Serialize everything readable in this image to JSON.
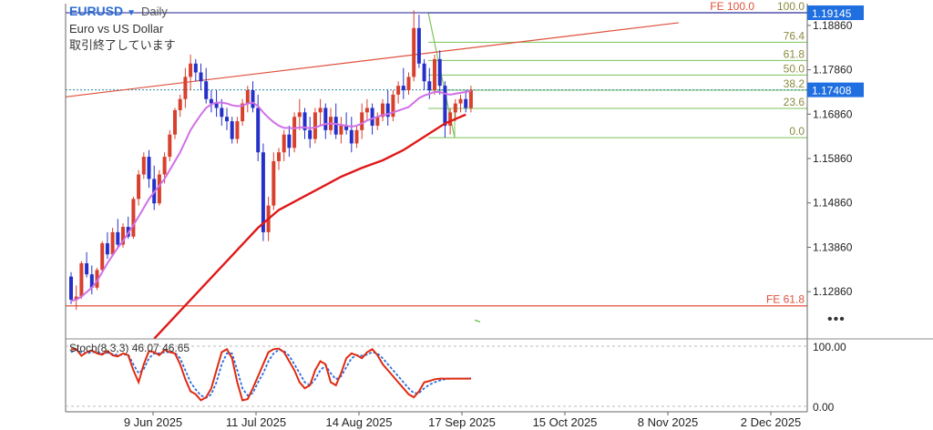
{
  "header": {
    "symbol": "EURUSD",
    "timeframe": "Daily",
    "description": "Euro vs US Dollar",
    "status": "取引終了しています"
  },
  "more_icon": "•••",
  "colors": {
    "up_candle": "#d8402e",
    "down_candle": "#2530c8",
    "ma_short": "#d070e6",
    "ma_long": "#e01818",
    "trend_line": "#e0503c",
    "fib": "#7cc25a",
    "fe": "#e0503c",
    "stoch_k": "#e02a10",
    "stoch_d": "#2a6ee0",
    "price_tag": "#1f6fe0"
  },
  "chart_data": {
    "type": "candlestick",
    "symbol": "EURUSD",
    "timeframe": "Daily",
    "y_ticks": [
      1.1886,
      1.1786,
      1.1686,
      1.1586,
      1.1486,
      1.1386,
      1.1286
    ],
    "y_tick_labels": [
      "1.18860",
      "1.17860",
      "1.16860",
      "1.15860",
      "1.14860",
      "1.13860",
      "1.12860"
    ],
    "ylim": [
      1.1196,
      1.1935
    ],
    "x_labels": [
      "9 Jun 2025",
      "11 Jul 2025",
      "14 Aug 2025",
      "17 Sep 2025",
      "15 Oct 2025",
      "8 Nov 2025",
      "2 Dec 2025"
    ],
    "current_price": "1.17408",
    "fe_price": "1.19145",
    "fib_retracement": [
      {
        "label": "100.0",
        "price": 1.19145
      },
      {
        "label": "76.4",
        "price": 1.1848
      },
      {
        "label": "61.8",
        "price": 1.1807
      },
      {
        "label": "50.0",
        "price": 1.1774
      },
      {
        "label": "38.2",
        "price": 1.174
      },
      {
        "label": "23.6",
        "price": 1.1699
      },
      {
        "label": "0.0",
        "price": 1.1633
      }
    ],
    "fib_extension": [
      {
        "label": "FE 100.0",
        "price": 1.19145
      },
      {
        "label": "FE 61.8",
        "price": 1.1254
      }
    ],
    "candles": [
      [
        1.132,
        1.133,
        1.1258,
        1.1268
      ],
      [
        1.1268,
        1.13,
        1.1245,
        1.1275
      ],
      [
        1.1275,
        1.1355,
        1.127,
        1.135
      ],
      [
        1.135,
        1.1375,
        1.1318,
        1.1325
      ],
      [
        1.1325,
        1.1345,
        1.128,
        1.1295
      ],
      [
        1.1295,
        1.134,
        1.129,
        1.1335
      ],
      [
        1.1335,
        1.14,
        1.133,
        1.1395
      ],
      [
        1.1395,
        1.142,
        1.136,
        1.137
      ],
      [
        1.137,
        1.143,
        1.1365,
        1.142
      ],
      [
        1.142,
        1.145,
        1.1385,
        1.1392
      ],
      [
        1.1392,
        1.144,
        1.1385,
        1.1432
      ],
      [
        1.1432,
        1.1455,
        1.1405,
        1.141
      ],
      [
        1.141,
        1.15,
        1.1405,
        1.1495
      ],
      [
        1.1495,
        1.156,
        1.148,
        1.155
      ],
      [
        1.155,
        1.16,
        1.154,
        1.159
      ],
      [
        1.159,
        1.1605,
        1.152,
        1.154
      ],
      [
        1.154,
        1.157,
        1.147,
        1.1485
      ],
      [
        1.1485,
        1.156,
        1.148,
        1.155
      ],
      [
        1.155,
        1.16,
        1.153,
        1.159
      ],
      [
        1.159,
        1.165,
        1.158,
        1.164
      ],
      [
        1.164,
        1.17,
        1.163,
        1.1695
      ],
      [
        1.1695,
        1.173,
        1.168,
        1.172
      ],
      [
        1.172,
        1.179,
        1.17,
        1.177
      ],
      [
        1.177,
        1.182,
        1.174,
        1.18
      ],
      [
        1.18,
        1.181,
        1.176,
        1.178
      ],
      [
        1.178,
        1.18,
        1.174,
        1.176
      ],
      [
        1.176,
        1.179,
        1.171,
        1.172
      ],
      [
        1.172,
        1.174,
        1.169,
        1.171
      ],
      [
        1.171,
        1.174,
        1.168,
        1.17
      ],
      [
        1.17,
        1.172,
        1.166,
        1.168
      ],
      [
        1.168,
        1.17,
        1.165,
        1.167
      ],
      [
        1.167,
        1.168,
        1.162,
        1.163
      ],
      [
        1.163,
        1.168,
        1.162,
        1.167
      ],
      [
        1.167,
        1.172,
        1.166,
        1.171
      ],
      [
        1.171,
        1.175,
        1.169,
        1.174
      ],
      [
        1.174,
        1.176,
        1.169,
        1.17
      ],
      [
        1.17,
        1.173,
        1.158,
        1.16
      ],
      [
        1.16,
        1.162,
        1.14,
        1.142
      ],
      [
        1.142,
        1.15,
        1.14,
        1.148
      ],
      [
        1.148,
        1.16,
        1.147,
        1.158
      ],
      [
        1.158,
        1.161,
        1.156,
        1.16
      ],
      [
        1.16,
        1.165,
        1.158,
        1.164
      ],
      [
        1.164,
        1.166,
        1.159,
        1.161
      ],
      [
        1.161,
        1.169,
        1.16,
        1.168
      ],
      [
        1.168,
        1.172,
        1.165,
        1.169
      ],
      [
        1.169,
        1.17,
        1.163,
        1.165
      ],
      [
        1.165,
        1.168,
        1.161,
        1.163
      ],
      [
        1.163,
        1.17,
        1.162,
        1.169
      ],
      [
        1.169,
        1.172,
        1.166,
        1.17
      ],
      [
        1.17,
        1.171,
        1.163,
        1.165
      ],
      [
        1.165,
        1.17,
        1.164,
        1.168
      ],
      [
        1.168,
        1.171,
        1.163,
        1.164
      ],
      [
        1.164,
        1.168,
        1.162,
        1.166
      ],
      [
        1.166,
        1.169,
        1.164,
        1.165
      ],
      [
        1.165,
        1.168,
        1.16,
        1.162
      ],
      [
        1.162,
        1.166,
        1.161,
        1.165
      ],
      [
        1.165,
        1.171,
        1.163,
        1.169
      ],
      [
        1.169,
        1.172,
        1.167,
        1.17
      ],
      [
        1.17,
        1.171,
        1.164,
        1.166
      ],
      [
        1.166,
        1.169,
        1.165,
        1.168
      ],
      [
        1.168,
        1.172,
        1.167,
        1.171
      ],
      [
        1.171,
        1.174,
        1.166,
        1.168
      ],
      [
        1.168,
        1.174,
        1.167,
        1.173
      ],
      [
        1.173,
        1.176,
        1.171,
        1.175
      ],
      [
        1.175,
        1.179,
        1.172,
        1.174
      ],
      [
        1.174,
        1.178,
        1.173,
        1.177
      ],
      [
        1.177,
        1.192,
        1.176,
        1.188
      ],
      [
        1.188,
        1.191,
        1.179,
        1.18
      ],
      [
        1.18,
        1.181,
        1.174,
        1.176
      ],
      [
        1.176,
        1.179,
        1.172,
        1.174
      ],
      [
        1.174,
        1.182,
        1.173,
        1.181
      ],
      [
        1.181,
        1.183,
        1.173,
        1.175
      ],
      [
        1.175,
        1.176,
        1.1633,
        1.166
      ],
      [
        1.166,
        1.17,
        1.164,
        1.169
      ],
      [
        1.169,
        1.172,
        1.167,
        1.171
      ],
      [
        1.171,
        1.173,
        1.169,
        1.172
      ],
      [
        1.172,
        1.174,
        1.169,
        1.17
      ],
      [
        1.17,
        1.175,
        1.169,
        1.1741
      ]
    ],
    "ma_short": [
      1.1265,
      1.1268,
      1.1275,
      1.1285,
      1.1295,
      1.131,
      1.133,
      1.135,
      1.1368,
      1.1385,
      1.14,
      1.1418,
      1.1436,
      1.1455,
      1.1475,
      1.1495,
      1.151,
      1.1525,
      1.154,
      1.156,
      1.158,
      1.16,
      1.1625,
      1.165,
      1.1668,
      1.1685,
      1.17,
      1.1708,
      1.1712,
      1.1712,
      1.171,
      1.1706,
      1.1704,
      1.1705,
      1.171,
      1.1712,
      1.1704,
      1.169,
      1.1678,
      1.1668,
      1.166,
      1.1655,
      1.1655,
      1.1654,
      1.1656,
      1.1656,
      1.1654,
      1.1656,
      1.166,
      1.1664,
      1.1665,
      1.1664,
      1.1662,
      1.166,
      1.1658,
      1.166,
      1.1665,
      1.1672,
      1.1676,
      1.168,
      1.1684,
      1.1686,
      1.169,
      1.1694,
      1.1698,
      1.1702,
      1.1712,
      1.1722,
      1.1728,
      1.1732,
      1.1736,
      1.1736,
      1.1732,
      1.173,
      1.1732,
      1.1734,
      1.1736,
      1.1738
    ],
    "ma_long_points": [
      [
        16,
        1.118
      ],
      [
        20,
        1.123
      ],
      [
        24,
        1.128
      ],
      [
        28,
        1.133
      ],
      [
        32,
        1.138
      ],
      [
        36,
        1.143
      ],
      [
        40,
        1.147
      ],
      [
        44,
        1.1495
      ],
      [
        48,
        1.152
      ],
      [
        52,
        1.1545
      ],
      [
        56,
        1.1565
      ],
      [
        60,
        1.1582
      ],
      [
        64,
        1.1605
      ],
      [
        68,
        1.1635
      ],
      [
        72,
        1.1665
      ],
      [
        76,
        1.1685
      ]
    ],
    "trend_line": [
      [
        -1,
        1.1725
      ],
      [
        117,
        1.1892
      ]
    ],
    "stochastic": {
      "label": "Stoch(8,3,3)",
      "k_value": "46.07",
      "d_value": "46.65",
      "ylim": [
        0,
        100
      ],
      "y_tick_labels": [
        "100.00",
        "0.00"
      ],
      "k": [
        95,
        95,
        84,
        90,
        93,
        88,
        86,
        92,
        85,
        83,
        88,
        85,
        60,
        40,
        70,
        92,
        90,
        85,
        94,
        90,
        88,
        70,
        45,
        25,
        20,
        10,
        15,
        30,
        60,
        90,
        95,
        80,
        40,
        10,
        12,
        30,
        50,
        70,
        90,
        95,
        96,
        90,
        75,
        60,
        40,
        30,
        35,
        60,
        75,
        70,
        40,
        35,
        55,
        80,
        88,
        85,
        80,
        90,
        95,
        85,
        70,
        60,
        50,
        40,
        30,
        20,
        15,
        25,
        40,
        42,
        45,
        46,
        46,
        46,
        46,
        46,
        46,
        46
      ],
      "d": [
        90,
        94,
        90,
        88,
        90,
        90,
        88,
        89,
        87,
        85,
        86,
        86,
        70,
        55,
        62,
        80,
        88,
        88,
        90,
        90,
        89,
        80,
        60,
        40,
        28,
        18,
        14,
        20,
        40,
        70,
        88,
        88,
        60,
        30,
        18,
        22,
        40,
        55,
        75,
        88,
        94,
        92,
        84,
        70,
        55,
        40,
        35,
        45,
        60,
        68,
        55,
        45,
        50,
        65,
        80,
        85,
        84,
        86,
        90,
        88,
        80,
        70,
        60,
        50,
        40,
        30,
        22,
        22,
        30,
        36,
        40,
        43,
        45,
        46,
        46,
        46,
        46,
        47
      ]
    }
  }
}
